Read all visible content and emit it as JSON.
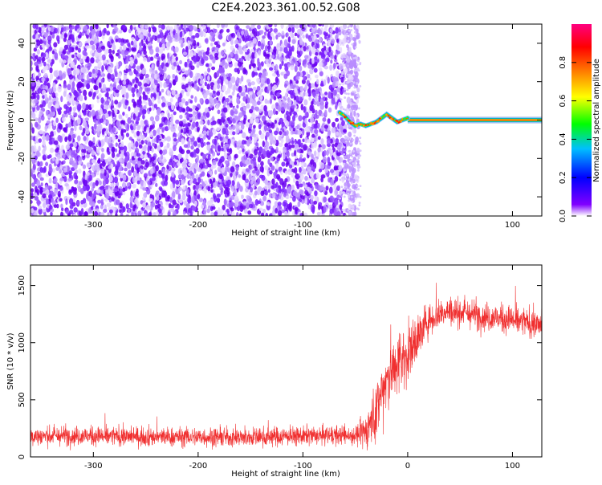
{
  "figure_title": "C2E4.2023.361.00.52.G08",
  "chart_data": [
    {
      "type": "heatmap",
      "xlabel": "Height of straight line (km)",
      "ylabel": "Frequency (Hz)",
      "xlim": [
        -360,
        128
      ],
      "ylim": [
        -50,
        50
      ],
      "xticks": [
        -300,
        -200,
        -100,
        0,
        100
      ],
      "yticks": [
        -40,
        -20,
        0,
        20,
        40
      ],
      "colorbar": {
        "label": "Normalized spectral amplitude",
        "range": [
          0,
          1
        ],
        "ticks": [
          0.0,
          0.2,
          0.4,
          0.6,
          0.8
        ],
        "colormap": [
          "#ffffff",
          "#8000ff",
          "#0000ff",
          "#00bfff",
          "#00ff00",
          "#ffff00",
          "#ff8000",
          "#ff0000",
          "#ff0080"
        ]
      },
      "noise_region_x": [
        -360,
        -55
      ],
      "transition_x": [
        -65,
        0
      ],
      "signal_start_x": 0,
      "signal_frequency_hz": 0,
      "signal_amplitude": 1.0,
      "signal_trace": [
        {
          "x": -65,
          "y": 4
        },
        {
          "x": -60,
          "y": 2
        },
        {
          "x": -55,
          "y": -1
        },
        {
          "x": -50,
          "y": -3
        },
        {
          "x": -45,
          "y": -2
        },
        {
          "x": -40,
          "y": -3
        },
        {
          "x": -35,
          "y": -2
        },
        {
          "x": -30,
          "y": -1
        },
        {
          "x": -25,
          "y": 1
        },
        {
          "x": -20,
          "y": 3
        },
        {
          "x": -15,
          "y": 1
        },
        {
          "x": -10,
          "y": -1
        },
        {
          "x": -5,
          "y": 0
        },
        {
          "x": 0,
          "y": 1
        }
      ],
      "grid": false
    },
    {
      "type": "line",
      "xlabel": "Height of straight line (km)",
      "ylabel": "SNR (10 * v/v)",
      "xlim": [
        -360,
        128
      ],
      "ylim": [
        0,
        1680
      ],
      "xticks": [
        -300,
        -200,
        -100,
        0,
        100
      ],
      "yticks": [
        0,
        500,
        1000,
        1500
      ],
      "color": "#f03030",
      "series": [
        {
          "x": [
            -360,
            -320,
            -280,
            -240,
            -200,
            -160,
            -120,
            -80,
            -50,
            -40,
            -30,
            -20,
            -10,
            0,
            10,
            20,
            30,
            40,
            60,
            80,
            100,
            128
          ],
          "values": [
            180,
            185,
            180,
            175,
            175,
            170,
            180,
            185,
            190,
            220,
            400,
            700,
            800,
            900,
            1050,
            1200,
            1250,
            1280,
            1250,
            1220,
            1200,
            1150
          ],
          "noise": [
            80,
            80,
            80,
            80,
            80,
            80,
            80,
            80,
            80,
            150,
            250,
            300,
            300,
            250,
            200,
            150,
            120,
            120,
            120,
            120,
            120,
            120
          ]
        }
      ],
      "grid": false
    }
  ]
}
